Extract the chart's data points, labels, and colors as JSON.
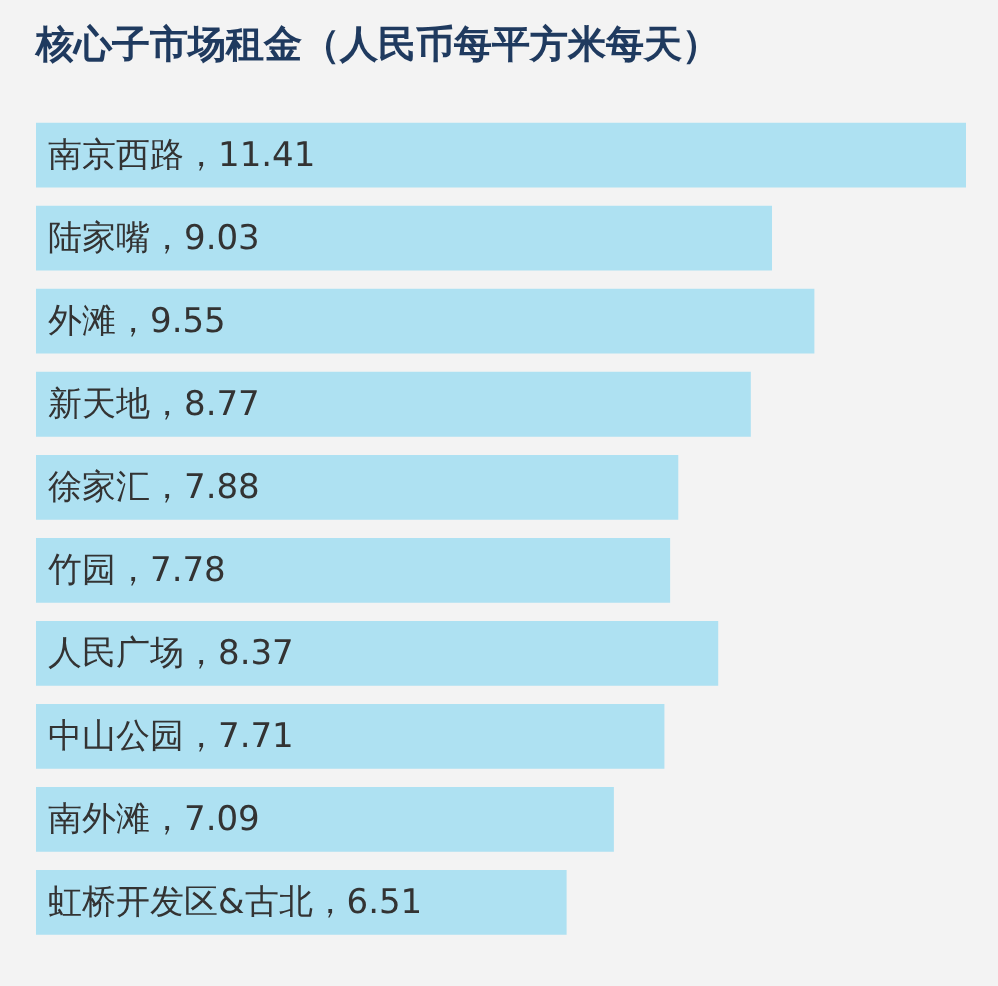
{
  "chart_data": {
    "type": "bar",
    "orientation": "horizontal",
    "title": "核心子市场租金（人民币每平方米每天）",
    "categories": [
      "南京西路",
      "陆家嘴",
      "外滩",
      "新天地",
      "徐家汇",
      "竹园",
      "人民广场",
      "中山公园",
      "南外滩",
      "虹桥开发区&古北"
    ],
    "values": [
      11.41,
      9.03,
      9.55,
      8.77,
      7.88,
      7.78,
      8.37,
      7.71,
      7.09,
      6.51
    ],
    "value_labels": [
      "，11.41",
      "，9.03",
      "，9.55",
      "，8.77",
      "，7.88",
      "，7.78",
      "，8.37",
      "，7.71",
      "，7.09",
      "，6.51"
    ],
    "color": "#aee1f2",
    "legend": false,
    "tick_labels": false
  }
}
